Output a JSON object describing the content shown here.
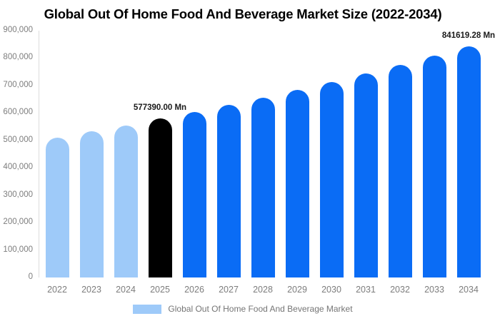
{
  "header": {
    "title": "Global Out Of Home Food And Beverage Market Size (2022-2034)"
  },
  "chart_data": {
    "type": "bar",
    "title": "Global Out Of Home Food And Beverage Market Size (2022-2034)",
    "unit": "Mn",
    "categories": [
      "2022",
      "2023",
      "2024",
      "2025",
      "2026",
      "2027",
      "2028",
      "2029",
      "2030",
      "2031",
      "2032",
      "2033",
      "2034"
    ],
    "series": [
      {
        "name": "Global Out Of Home Food And Beverage Market",
        "values": [
          509180,
          530970,
          553690,
          577390,
          602100,
          627870,
          654740,
          682770,
          711990,
          742460,
          774240,
          807380,
          841619.28
        ]
      }
    ],
    "ylim": [
      0,
      900000
    ],
    "y_tick_labels": [
      "900,000",
      "800,000",
      "700,000",
      "600,000",
      "500,000",
      "400,000",
      "300,000",
      "200,000",
      "100,000",
      "0"
    ],
    "grid": false,
    "legend_position": "bottom",
    "bar_colors": [
      "#9ECAF9",
      "#9ECAF9",
      "#9ECAF9",
      "#000000",
      "#0A6CF5",
      "#0A6CF5",
      "#0A6CF5",
      "#0A6CF5",
      "#0A6CF5",
      "#0A6CF5",
      "#0A6CF5",
      "#0A6CF5",
      "#0A6CF5"
    ],
    "annotations": [
      {
        "text": "577390.00 Mn",
        "bar_index": 3
      },
      {
        "text": "841619.28 Mn",
        "bar_index": 12
      }
    ],
    "legend": [
      {
        "label": "Global Out Of Home Food And Beverage Market",
        "color": "#9ECAF9"
      }
    ],
    "colors": {
      "past_bars": "#9ECAF9",
      "current_bar": "#000000",
      "future_bars": "#0A6CF5",
      "axis_text": "#7d7d7d",
      "legend_text": "#757575",
      "annotation_text": "#1a1a1a",
      "axis_line": "#dcdcdc",
      "title_text": "#000000"
    }
  }
}
